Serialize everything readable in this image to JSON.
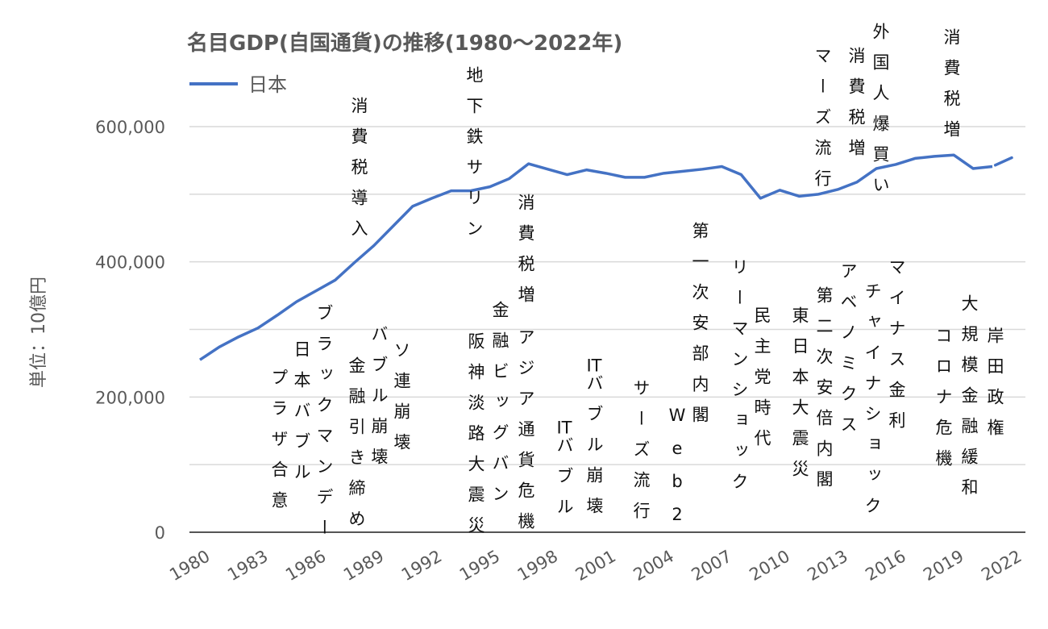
{
  "chart_data": {
    "type": "line",
    "title": "名目GDP(自国通貨)の推移(1980～2022年)",
    "ylabel": "単位：10億円",
    "xlabel": "",
    "ylim": [
      0,
      600000
    ],
    "yticks": [
      0,
      200000,
      400000,
      600000
    ],
    "ytick_labels": [
      "0",
      "200,000",
      "400,000",
      "600,000"
    ],
    "xtick_labels": [
      "1980",
      "1983",
      "1986",
      "1989",
      "1992",
      "1995",
      "1998",
      "2001",
      "2004",
      "2007",
      "2010",
      "2013",
      "2016",
      "2019",
      "2022"
    ],
    "grid": true,
    "legend": "top-left",
    "color": "#4472C4",
    "series": [
      {
        "name": "日本",
        "x": [
          1980,
          1981,
          1982,
          1983,
          1984,
          1985,
          1986,
          1987,
          1988,
          1989,
          1990,
          1991,
          1992,
          1993,
          1994,
          1995,
          1996,
          1997,
          1998,
          1999,
          2000,
          2001,
          2002,
          2003,
          2004,
          2005,
          2006,
          2007,
          2008,
          2009,
          2010,
          2011,
          2012,
          2013,
          2014,
          2015,
          2016,
          2017,
          2018,
          2019,
          2020,
          2021,
          2022
        ],
        "values": [
          255000,
          274000,
          289000,
          302000,
          321000,
          341000,
          357000,
          373000,
          399000,
          424000,
          453000,
          482000,
          494000,
          505000,
          505000,
          511000,
          523000,
          545000,
          537000,
          529000,
          536000,
          531000,
          525000,
          525000,
          531000,
          534000,
          537000,
          541000,
          529000,
          494000,
          506000,
          497000,
          500000,
          507000,
          518000,
          538000,
          544000,
          553000,
          556000,
          558000,
          538000,
          541000,
          554000
        ]
      }
    ],
    "annotations": [
      {
        "year": 1985,
        "text": "プラザ合意"
      },
      {
        "year": 1986,
        "text": "日本バブル"
      },
      {
        "year": 1987,
        "text": "ブラックマンデー"
      },
      {
        "year": 1989,
        "text": "消費税導入"
      },
      {
        "year": 1989,
        "text": "金融引き締め"
      },
      {
        "year": 1990,
        "text": "バブル崩壊"
      },
      {
        "year": 1991,
        "text": "ソ連崩壊"
      },
      {
        "year": 1995,
        "text": "地下鉄サリン"
      },
      {
        "year": 1995,
        "text": "阪神淡路大震災"
      },
      {
        "year": 1996,
        "text": "金融ビッグバン"
      },
      {
        "year": 1997,
        "text": "消費税増"
      },
      {
        "year": 1997,
        "text": "アジア通貨危機"
      },
      {
        "year": 1999,
        "text": "ITバブル"
      },
      {
        "year": 2000,
        "text": "ITバブル崩壊"
      },
      {
        "year": 2003,
        "text": "サーズ流行"
      },
      {
        "year": 2004,
        "text": "Web2"
      },
      {
        "year": 2006,
        "text": "第一次安部内閣"
      },
      {
        "year": 2008,
        "text": "リーマンショック"
      },
      {
        "year": 2009,
        "text": "民主党時代"
      },
      {
        "year": 2011,
        "text": "東日本大震災"
      },
      {
        "year": 2012,
        "text": "第二次安倍内閣"
      },
      {
        "year": 2013,
        "text": "アベノミクス"
      },
      {
        "year": 2015,
        "text": "チャイナショック"
      },
      {
        "year": 2016,
        "text": "マイナス金利"
      },
      {
        "year": 2020,
        "text": "コロナ危機"
      },
      {
        "year": 2021,
        "text": "大規模金融緩和"
      },
      {
        "year": 2021,
        "text": "岸田政権"
      },
      {
        "year": 2012,
        "text": "マーズ流行"
      },
      {
        "year": 2014,
        "text": "消費税増"
      },
      {
        "year": 2015,
        "text": "外国人爆買い"
      },
      {
        "year": 2019,
        "text": "消費税増"
      }
    ]
  }
}
